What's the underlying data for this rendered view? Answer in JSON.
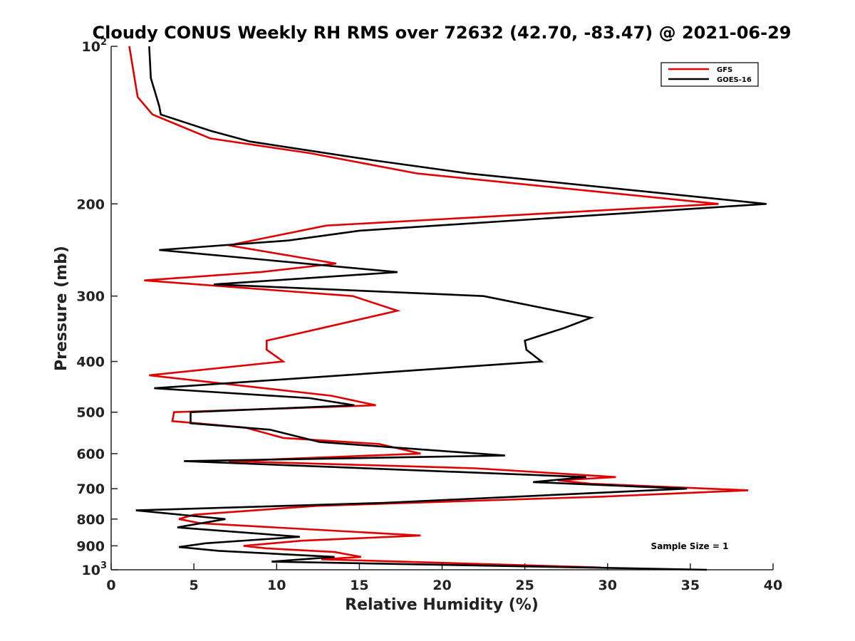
{
  "chart_data": {
    "type": "line",
    "title": "Cloudy CONUS Weekly RH RMS over 72632 (42.70, -83.47) @ 2021-06-29",
    "xlabel": "Relative Humidity (%)",
    "ylabel": "Pressure (mb)",
    "xlim": [
      0,
      40
    ],
    "ylim": [
      100,
      1000
    ],
    "y_scale": "log",
    "y_reversed": true,
    "grid": false,
    "legend_position": "top-right",
    "x_ticks": [
      0,
      5,
      10,
      15,
      20,
      25,
      30,
      35,
      40
    ],
    "y_ticks": [
      {
        "value": 100,
        "label": "10",
        "sup": "2"
      },
      {
        "value": 200,
        "label": "200"
      },
      {
        "value": 300,
        "label": "300"
      },
      {
        "value": 400,
        "label": "400"
      },
      {
        "value": 500,
        "label": "500"
      },
      {
        "value": 600,
        "label": "600"
      },
      {
        "value": 700,
        "label": "700"
      },
      {
        "value": 800,
        "label": "800"
      },
      {
        "value": 900,
        "label": "900"
      },
      {
        "value": 1000,
        "label": "10",
        "sup": "3"
      }
    ],
    "series": [
      {
        "name": "GFS",
        "color": "#e00000",
        "points": [
          [
            1.1,
            100
          ],
          [
            1.6,
            125
          ],
          [
            2.5,
            135
          ],
          [
            6.0,
            150
          ],
          [
            12.0,
            160
          ],
          [
            18.5,
            175
          ],
          [
            36.7,
            200
          ],
          [
            13.0,
            220
          ],
          [
            7.1,
            240
          ],
          [
            13.6,
            260
          ],
          [
            9.0,
            270
          ],
          [
            2.0,
            280
          ],
          [
            14.6,
            300
          ],
          [
            17.3,
            320
          ],
          [
            12.8,
            345
          ],
          [
            9.4,
            365
          ],
          [
            9.4,
            380
          ],
          [
            10.4,
            400
          ],
          [
            2.3,
            425
          ],
          [
            13.3,
            465
          ],
          [
            16.0,
            485
          ],
          [
            3.8,
            500
          ],
          [
            3.7,
            520
          ],
          [
            8.1,
            535
          ],
          [
            10.4,
            560
          ],
          [
            16.2,
            575
          ],
          [
            18.7,
            600
          ],
          [
            7.1,
            620
          ],
          [
            22.0,
            640
          ],
          [
            30.5,
            665
          ],
          [
            27.0,
            675
          ],
          [
            29.0,
            685
          ],
          [
            38.5,
            705
          ],
          [
            29.7,
            725
          ],
          [
            12.4,
            755
          ],
          [
            5.0,
            785
          ],
          [
            4.1,
            800
          ],
          [
            5.4,
            815
          ],
          [
            18.7,
            860
          ],
          [
            11.5,
            880
          ],
          [
            8.0,
            900
          ],
          [
            9.4,
            910
          ],
          [
            13.5,
            925
          ],
          [
            15.1,
            945
          ],
          [
            12.7,
            955
          ],
          [
            29.6,
            990
          ]
        ]
      },
      {
        "name": "GOES-16",
        "color": "#000000",
        "points": [
          [
            2.3,
            100
          ],
          [
            2.4,
            115
          ],
          [
            2.9,
            130
          ],
          [
            3.0,
            135
          ],
          [
            6.0,
            145
          ],
          [
            8.4,
            152
          ],
          [
            15.8,
            165
          ],
          [
            21.6,
            175
          ],
          [
            39.6,
            200
          ],
          [
            15.0,
            225
          ],
          [
            10.7,
            235
          ],
          [
            2.9,
            245
          ],
          [
            17.3,
            270
          ],
          [
            6.2,
            285
          ],
          [
            22.5,
            300
          ],
          [
            29.0,
            330
          ],
          [
            27.4,
            345
          ],
          [
            25.0,
            365
          ],
          [
            25.1,
            380
          ],
          [
            26.0,
            400
          ],
          [
            16.4,
            420
          ],
          [
            2.6,
            450
          ],
          [
            12.0,
            470
          ],
          [
            14.7,
            485
          ],
          [
            4.8,
            500
          ],
          [
            4.8,
            525
          ],
          [
            9.6,
            540
          ],
          [
            12.6,
            570
          ],
          [
            23.8,
            605
          ],
          [
            4.4,
            620
          ],
          [
            28.7,
            665
          ],
          [
            25.5,
            680
          ],
          [
            34.8,
            700
          ],
          [
            16.5,
            745
          ],
          [
            1.5,
            770
          ],
          [
            6.9,
            800
          ],
          [
            4.0,
            830
          ],
          [
            11.4,
            865
          ],
          [
            5.7,
            890
          ],
          [
            4.1,
            905
          ],
          [
            6.5,
            920
          ],
          [
            13.5,
            945
          ],
          [
            9.7,
            965
          ],
          [
            36.0,
            1000
          ]
        ]
      }
    ],
    "annotations": [
      {
        "text": "Sample Size = 1"
      }
    ]
  }
}
